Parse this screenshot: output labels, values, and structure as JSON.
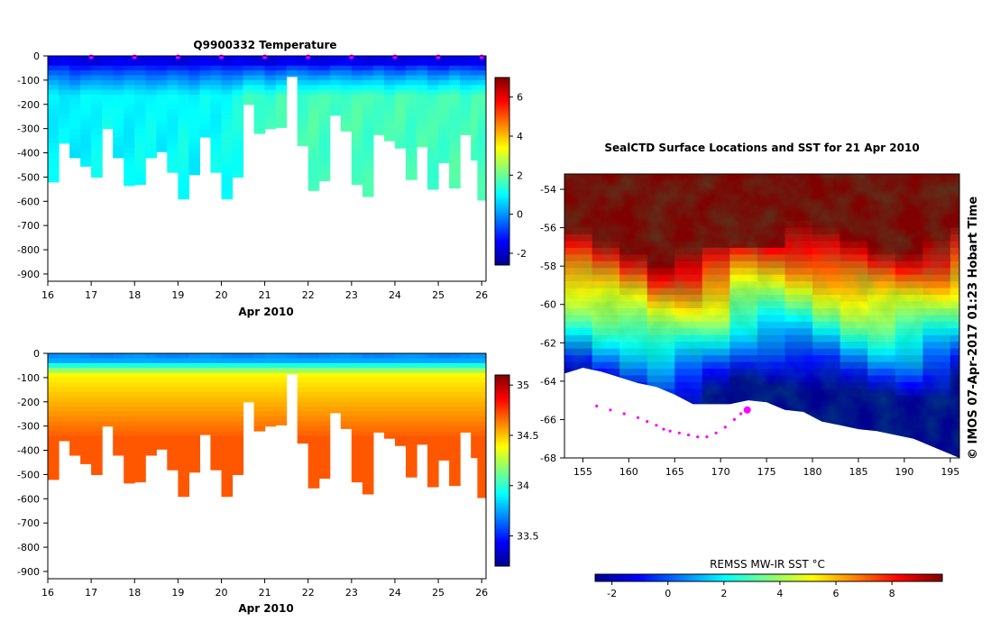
{
  "chart_data": [
    {
      "type": "heatmap",
      "title": "Q9900332  Temperature",
      "xlabel": "Apr 2010",
      "ylabel": "",
      "x_ticks": [
        "16",
        "17",
        "18",
        "19",
        "20",
        "21",
        "22",
        "23",
        "24",
        "25",
        "26"
      ],
      "xlim": [
        16,
        26.1
      ],
      "y_ticks": [
        "0",
        "-100",
        "-200",
        "-300",
        "-400",
        "-500",
        "-600",
        "-700",
        "-800",
        "-900"
      ],
      "ylim": [
        -930,
        0
      ],
      "colorbar_ticks": [
        "-2",
        "0",
        "2",
        "4",
        "6"
      ],
      "colorbar_range": [
        -2.6,
        7.0
      ],
      "profiles": {
        "days": [
          16.0,
          16.25,
          16.5,
          16.75,
          17.0,
          17.25,
          17.5,
          17.75,
          18.0,
          18.25,
          18.5,
          18.75,
          19.0,
          19.25,
          19.5,
          19.75,
          20.0,
          20.25,
          20.5,
          20.75,
          21.0,
          21.25,
          21.5,
          21.75,
          22.0,
          22.25,
          22.5,
          22.75,
          23.0,
          23.25,
          23.5,
          23.75,
          24.0,
          24.25,
          24.5,
          24.75,
          25.0,
          25.25,
          25.5,
          25.75,
          25.9
        ],
        "max_depth_m": [
          520,
          360,
          420,
          455,
          500,
          300,
          420,
          535,
          530,
          420,
          395,
          480,
          590,
          490,
          335,
          480,
          590,
          500,
          200,
          320,
          300,
          295,
          85,
          370,
          555,
          515,
          245,
          310,
          530,
          580,
          325,
          350,
          380,
          510,
          375,
          550,
          440,
          545,
          325,
          430,
          595
        ],
        "surface_temp_c": [
          -1.6,
          -1.5,
          -1.6,
          -1.7,
          -1.8,
          -1.6,
          -1.5,
          -1.6,
          -1.7,
          -1.6,
          -1.6,
          -1.7,
          -1.8,
          -1.6,
          -1.5,
          -1.6,
          -1.7,
          -1.5,
          -1.6,
          -1.7,
          -1.8,
          -1.6,
          -1.5,
          -1.6,
          -1.6,
          -1.7,
          -1.6,
          -1.5,
          -1.6,
          -1.7,
          -1.6,
          -1.6,
          -1.7,
          -1.6,
          -1.5,
          -1.6,
          -1.7,
          -1.6,
          -1.6,
          -1.5,
          -1.7
        ],
        "deep_temp_c": [
          0.9,
          0.9,
          0.8,
          0.9,
          1.0,
          1.1,
          0.9,
          0.9,
          1.0,
          1.0,
          0.9,
          1.0,
          1.1,
          0.9,
          1.0,
          1.0,
          1.1,
          1.2,
          1.5,
          1.6,
          1.5,
          1.6,
          1.7,
          1.6,
          1.7,
          1.6,
          1.6,
          1.7,
          1.7,
          1.6,
          1.7,
          1.6,
          1.7,
          1.6,
          1.7,
          1.6,
          1.6,
          1.7,
          1.6,
          1.7,
          1.6
        ]
      },
      "profile_markers_days": [
        17,
        18,
        19,
        20,
        21,
        22,
        23,
        24,
        25,
        26
      ]
    },
    {
      "type": "heatmap",
      "title": "",
      "xlabel": "Apr 2010",
      "ylabel": "",
      "x_ticks": [
        "16",
        "17",
        "18",
        "19",
        "20",
        "21",
        "22",
        "23",
        "24",
        "25",
        "26"
      ],
      "xlim": [
        16,
        26.1
      ],
      "y_ticks": [
        "0",
        "-100",
        "-200",
        "-300",
        "-400",
        "-500",
        "-600",
        "-700",
        "-800",
        "-900"
      ],
      "ylim": [
        -930,
        0
      ],
      "colorbar_ticks": [
        "33.5",
        "34",
        "34.5",
        "35"
      ],
      "colorbar_range": [
        33.2,
        35.1
      ],
      "profiles": {
        "surface_salinity": 33.7,
        "mid_salinity": 34.4,
        "deep_salinity": 34.7
      }
    },
    {
      "type": "heatmap",
      "title": "SealCTD Surface Locations and SST for 21 Apr 2010",
      "xlabel": "",
      "ylabel": "",
      "x_ticks": [
        "155",
        "160",
        "165",
        "170",
        "175",
        "180",
        "185",
        "190",
        "195"
      ],
      "xlim": [
        153,
        196
      ],
      "y_ticks": [
        "-54",
        "-56",
        "-58",
        "-60",
        "-62",
        "-64",
        "-66",
        "-68"
      ],
      "ylim": [
        -68,
        -53.2
      ],
      "colorbar_title": "REMSS MW-IR SST °C",
      "colorbar_ticks": [
        "-2",
        "0",
        "2",
        "4",
        "6",
        "8"
      ],
      "colorbar_range": [
        -2.6,
        9.8
      ],
      "track": {
        "lon": [
          156.5,
          158.0,
          159.5,
          161.0,
          162.0,
          163.0,
          163.8,
          164.5,
          165.5,
          166.5,
          167.5,
          168.5,
          169.5,
          170.5,
          171.5,
          172.2,
          172.9
        ],
        "lat": [
          -65.3,
          -65.5,
          -65.7,
          -65.9,
          -66.1,
          -66.3,
          -66.5,
          -66.6,
          -66.7,
          -66.8,
          -66.9,
          -66.9,
          -66.7,
          -66.4,
          -66.0,
          -65.7,
          -65.5
        ],
        "current_lon": 172.9,
        "current_lat": -65.5
      },
      "coast_lat_by_lon": {
        "lon": [
          153,
          155,
          157,
          159,
          161,
          163,
          165,
          167,
          169,
          171,
          173,
          175,
          177,
          179,
          181,
          183,
          185,
          187,
          189,
          191,
          193,
          195,
          196
        ],
        "lat": [
          -63.6,
          -63.3,
          -63.5,
          -63.8,
          -64.1,
          -64.3,
          -64.7,
          -65.2,
          -65.2,
          -65.2,
          -65.0,
          -65.1,
          -65.5,
          -65.6,
          -66.1,
          -66.3,
          -66.5,
          -66.6,
          -66.8,
          -67.0,
          -67.4,
          -67.8,
          -68.0
        ]
      }
    }
  ],
  "credit": "© IMOS 07-Apr-2017 01:23 Hobart Time",
  "colors": {
    "track": "#ff00ff",
    "land": "#ffffff",
    "frame": "#000000"
  }
}
